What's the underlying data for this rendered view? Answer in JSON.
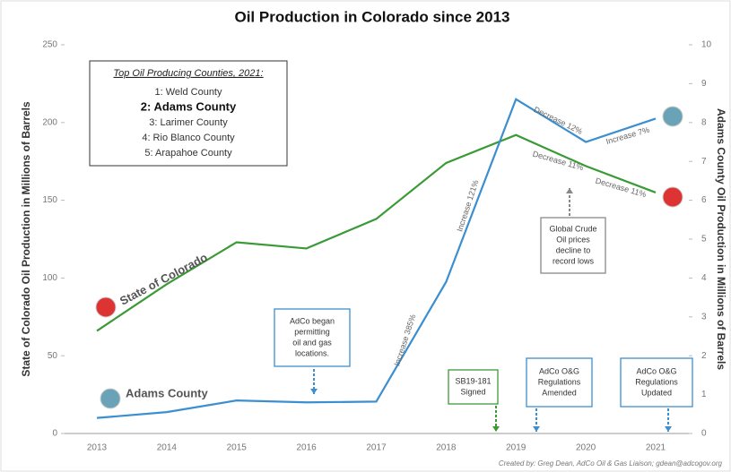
{
  "chart_data": {
    "type": "line",
    "title": "Oil Production in Colorado since 2013",
    "y_label": "State of Colorado Oil Production in Millions of Barrels",
    "y2_label": "Adams County Oil Production in Millions of Barrels",
    "categories": [
      "2013",
      "2014",
      "2015",
      "2016",
      "2017",
      "2018",
      "2019",
      "2020",
      "2021"
    ],
    "series": [
      {
        "name": "State of Colorado",
        "color": "#3a9a35",
        "values": [
          66,
          96,
          123,
          119,
          138,
          174,
          192,
          172,
          155
        ]
      },
      {
        "name": "Adams County",
        "color": "#3b8fd0",
        "axis": "y2",
        "values": [
          0.4,
          0.55,
          0.85,
          0.8,
          0.82,
          3.9,
          8.6,
          7.5,
          8.1
        ]
      }
    ],
    "ylim": [
      0,
      250
    ],
    "yticks": [
      0,
      50,
      100,
      150,
      200,
      250
    ],
    "y2lim": [
      0,
      10
    ],
    "y2ticks": [
      0,
      1,
      2,
      3,
      4,
      5,
      6,
      7,
      8,
      9,
      10
    ],
    "legend_box": {
      "title": "Top Oil Producing Counties, 2021:",
      "items": [
        "1: Weld County",
        "2: Adams County",
        "3: Larimer County",
        "4: Rio Blanco County",
        "5: Arapahoe County"
      ]
    },
    "segment_labels": [
      "Increase 385%",
      "Increase 121%",
      "Decrease 12%",
      "Increase 7%",
      "Decrease 11%",
      "Decrease 11%"
    ],
    "notes": [
      {
        "lines": [
          "AdCo began",
          "permitting",
          "oil and gas",
          "locations."
        ]
      },
      {
        "lines": [
          "SB19-181",
          "Signed"
        ]
      },
      {
        "lines": [
          "AdCo O&G",
          "Regulations",
          "Amended"
        ]
      },
      {
        "lines": [
          "AdCo O&G",
          "Regulations",
          "Updated"
        ]
      },
      {
        "lines": [
          "Global Crude",
          "Oil prices",
          "decline to",
          "record lows"
        ]
      }
    ],
    "credit": "Created by: Greg Dean, AdCo Oil & Gas Liaison; gdean@adcogov.org"
  }
}
